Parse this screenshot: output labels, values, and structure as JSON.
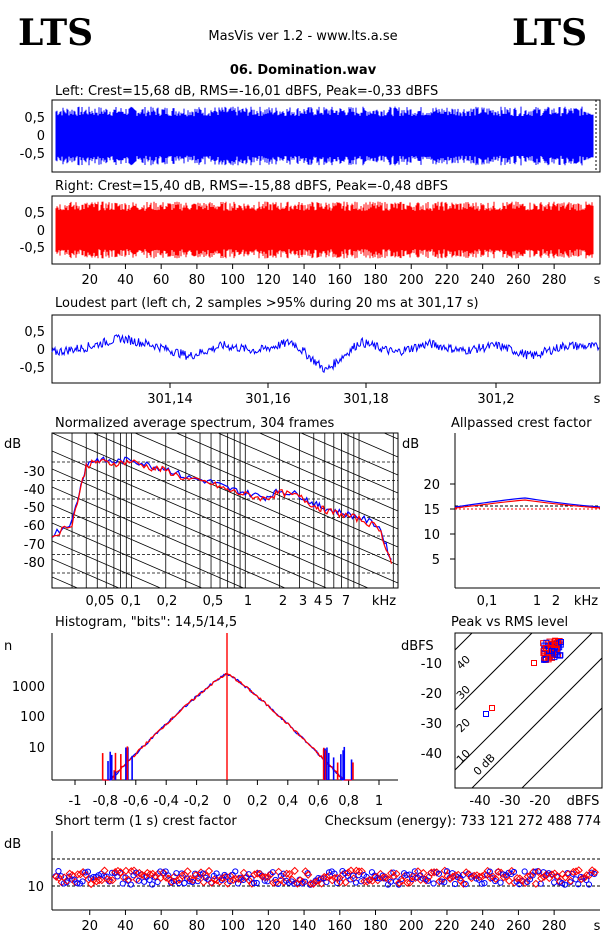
{
  "header": {
    "logo_left": "LTS",
    "logo_right": "LTS",
    "app_title": "MasVis ver 1.2 - www.lts.a.se",
    "file_name": "06. Domination.wav"
  },
  "colors": {
    "left": "#0000ff",
    "right": "#ff0000"
  },
  "waveform_left": {
    "label": "Left: Crest=15,68 dB, RMS=-16,01 dBFS, Peak=-0,33 dBFS",
    "y_ticks": [
      "0,5",
      "0",
      "-0,5"
    ]
  },
  "waveform_right": {
    "label": "Right: Crest=15,40 dB, RMS=-15,88 dBFS, Peak=-0,48 dBFS",
    "y_ticks": [
      "0,5",
      "0",
      "-0,5"
    ]
  },
  "time_axis": {
    "ticks": [
      "20",
      "40",
      "60",
      "80",
      "100",
      "120",
      "140",
      "160",
      "180",
      "200",
      "220",
      "240",
      "260",
      "280"
    ],
    "unit": "s"
  },
  "loudest": {
    "label": "Loudest part (left  ch, 2 samples >95% during 20 ms at 301,17 s)",
    "y_ticks": [
      "0,5",
      "0",
      "-0,5"
    ],
    "x_ticks": [
      "301,14",
      "301,16",
      "301,18",
      "301,2"
    ],
    "x_unit": "s"
  },
  "spectrum": {
    "label": "Normalized average spectrum, 304 frames",
    "y_unit": "dB",
    "y_ticks": [
      "-30",
      "-40",
      "-50",
      "-60",
      "-70",
      "-80"
    ],
    "x_ticks": [
      "0,05",
      "0,1",
      "0,2",
      "0,5",
      "1",
      "2",
      "3",
      "4",
      "5",
      "7"
    ],
    "x_unit": "kHz"
  },
  "allpassed": {
    "label": "Allpassed crest factor",
    "y_unit": "dB",
    "y_ticks": [
      "20",
      "15",
      "10",
      "5"
    ],
    "x_ticks": [
      "0,1",
      "1",
      "2"
    ],
    "x_unit": "kHz"
  },
  "histogram": {
    "label": "Histogram, \"bits\": 14,5/14,5",
    "y_unit": "n",
    "y_ticks": [
      "1000",
      "100",
      "10"
    ],
    "x_ticks": [
      "-1",
      "-0,8",
      "-0,6",
      "-0,4",
      "-0,2",
      "0",
      "0,2",
      "0,4",
      "0,6",
      "0,8",
      "1"
    ]
  },
  "peak_rms": {
    "label": "Peak vs RMS level",
    "y_unit": "dBFS",
    "y_ticks": [
      "-10",
      "-20",
      "-30",
      "-40"
    ],
    "x_ticks": [
      "-40",
      "-30",
      "-20"
    ],
    "x_unit": "dBFS",
    "diag_labels": [
      "40",
      "30",
      "20",
      "10",
      "0 dB"
    ]
  },
  "short_term": {
    "label": "Short term (1 s) crest factor",
    "checksum": "Checksum (energy):   733 121 272 488 774",
    "y_unit": "dB",
    "y_ticks": [
      "10"
    ]
  },
  "chart_data": [
    {
      "type": "area",
      "title": "Left: Crest=15,68 dB, RMS=-16,01 dBFS, Peak=-0,33 dBFS",
      "xlabel": "s",
      "xlim": [
        0,
        304
      ],
      "ylim": [
        -1,
        1
      ],
      "series": [
        {
          "peak_envelope": 0.95
        }
      ]
    },
    {
      "type": "area",
      "title": "Right: Crest=15,40 dB, RMS=-15,88 dBFS, Peak=-0,48 dBFS",
      "xlabel": "s",
      "xlim": [
        0,
        304
      ],
      "ylim": [
        -1,
        1
      ],
      "series": [
        {
          "peak_envelope": 0.95
        }
      ]
    },
    {
      "type": "line",
      "title": "Loudest part (left  ch, 2 samples >95% during 20 ms at 301,17 s)",
      "xlabel": "s",
      "xlim": [
        301.13,
        301.21
      ],
      "ylim": [
        -1,
        1
      ],
      "x": [
        301.13,
        301.135,
        301.14,
        301.145,
        301.15,
        301.155,
        301.16,
        301.165,
        301.17,
        301.175,
        301.18,
        301.185,
        301.19,
        301.195,
        301.2,
        301.205,
        301.21
      ],
      "series": [
        {
          "values": [
            -0.1,
            0.05,
            0.3,
            0.1,
            -0.2,
            0.1,
            -0.05,
            0.2,
            -0.6,
            0.2,
            -0.1,
            0.15,
            -0.05,
            0.1,
            -0.2,
            0.1,
            0.05
          ]
        }
      ]
    },
    {
      "type": "line",
      "title": "Normalized average spectrum, 304 frames",
      "xlabel": "kHz",
      "ylabel": "dB",
      "ylim": [
        -90,
        -20
      ],
      "x": [
        0.02,
        0.03,
        0.04,
        0.05,
        0.07,
        0.1,
        0.15,
        0.2,
        0.3,
        0.5,
        0.7,
        1,
        1.5,
        2,
        3,
        4,
        5,
        7,
        10,
        15,
        20
      ],
      "series": [
        {
          "values": [
            -66,
            -60,
            -34,
            -32,
            -33,
            -32,
            -35,
            -36,
            -40,
            -42,
            -45,
            -47,
            -49,
            -46,
            -48,
            -52,
            -54,
            -56,
            -58,
            -62,
            -80
          ]
        }
      ]
    },
    {
      "type": "line",
      "title": "Allpassed crest factor",
      "xlabel": "kHz",
      "ylabel": "dB",
      "ylim": [
        0,
        25
      ],
      "x": [
        0.02,
        0.05,
        0.1,
        0.2,
        0.5,
        0.7,
        1,
        2,
        5,
        20
      ],
      "series": [
        {
          "values": [
            15.5,
            16,
            16.5,
            16.8,
            17,
            17,
            16.5,
            16,
            15.6,
            15.5
          ]
        }
      ]
    },
    {
      "type": "line",
      "title": "Histogram, \"bits\": 14,5/14,5",
      "ylabel": "n",
      "x": [
        -1,
        -0.8,
        -0.6,
        -0.4,
        -0.2,
        0,
        0.2,
        0.4,
        0.6,
        0.8,
        1
      ],
      "series": [
        {
          "values": [
            1,
            3,
            18,
            120,
            700,
            3000,
            700,
            120,
            18,
            3,
            1
          ]
        }
      ]
    },
    {
      "type": "scatter",
      "title": "Peak vs RMS level",
      "xlabel": "dBFS",
      "ylabel": "dBFS",
      "series": [
        {
          "x": [
            -16,
            -15,
            -14,
            -17,
            -18,
            -16,
            -15,
            -13,
            -22,
            -38,
            -36
          ],
          "y": [
            -5,
            -4,
            -3,
            -6,
            -5,
            -6,
            -4,
            -3,
            -10,
            -27,
            -25
          ]
        }
      ]
    },
    {
      "type": "scatter",
      "title": "Short term (1 s) crest factor",
      "xlabel": "s",
      "ylabel": "dB",
      "ylim": [
        5,
        22
      ],
      "series": [
        {
          "name": "left",
          "mean": 13.5
        },
        {
          "name": "right",
          "mean": 13.5
        }
      ]
    }
  ]
}
